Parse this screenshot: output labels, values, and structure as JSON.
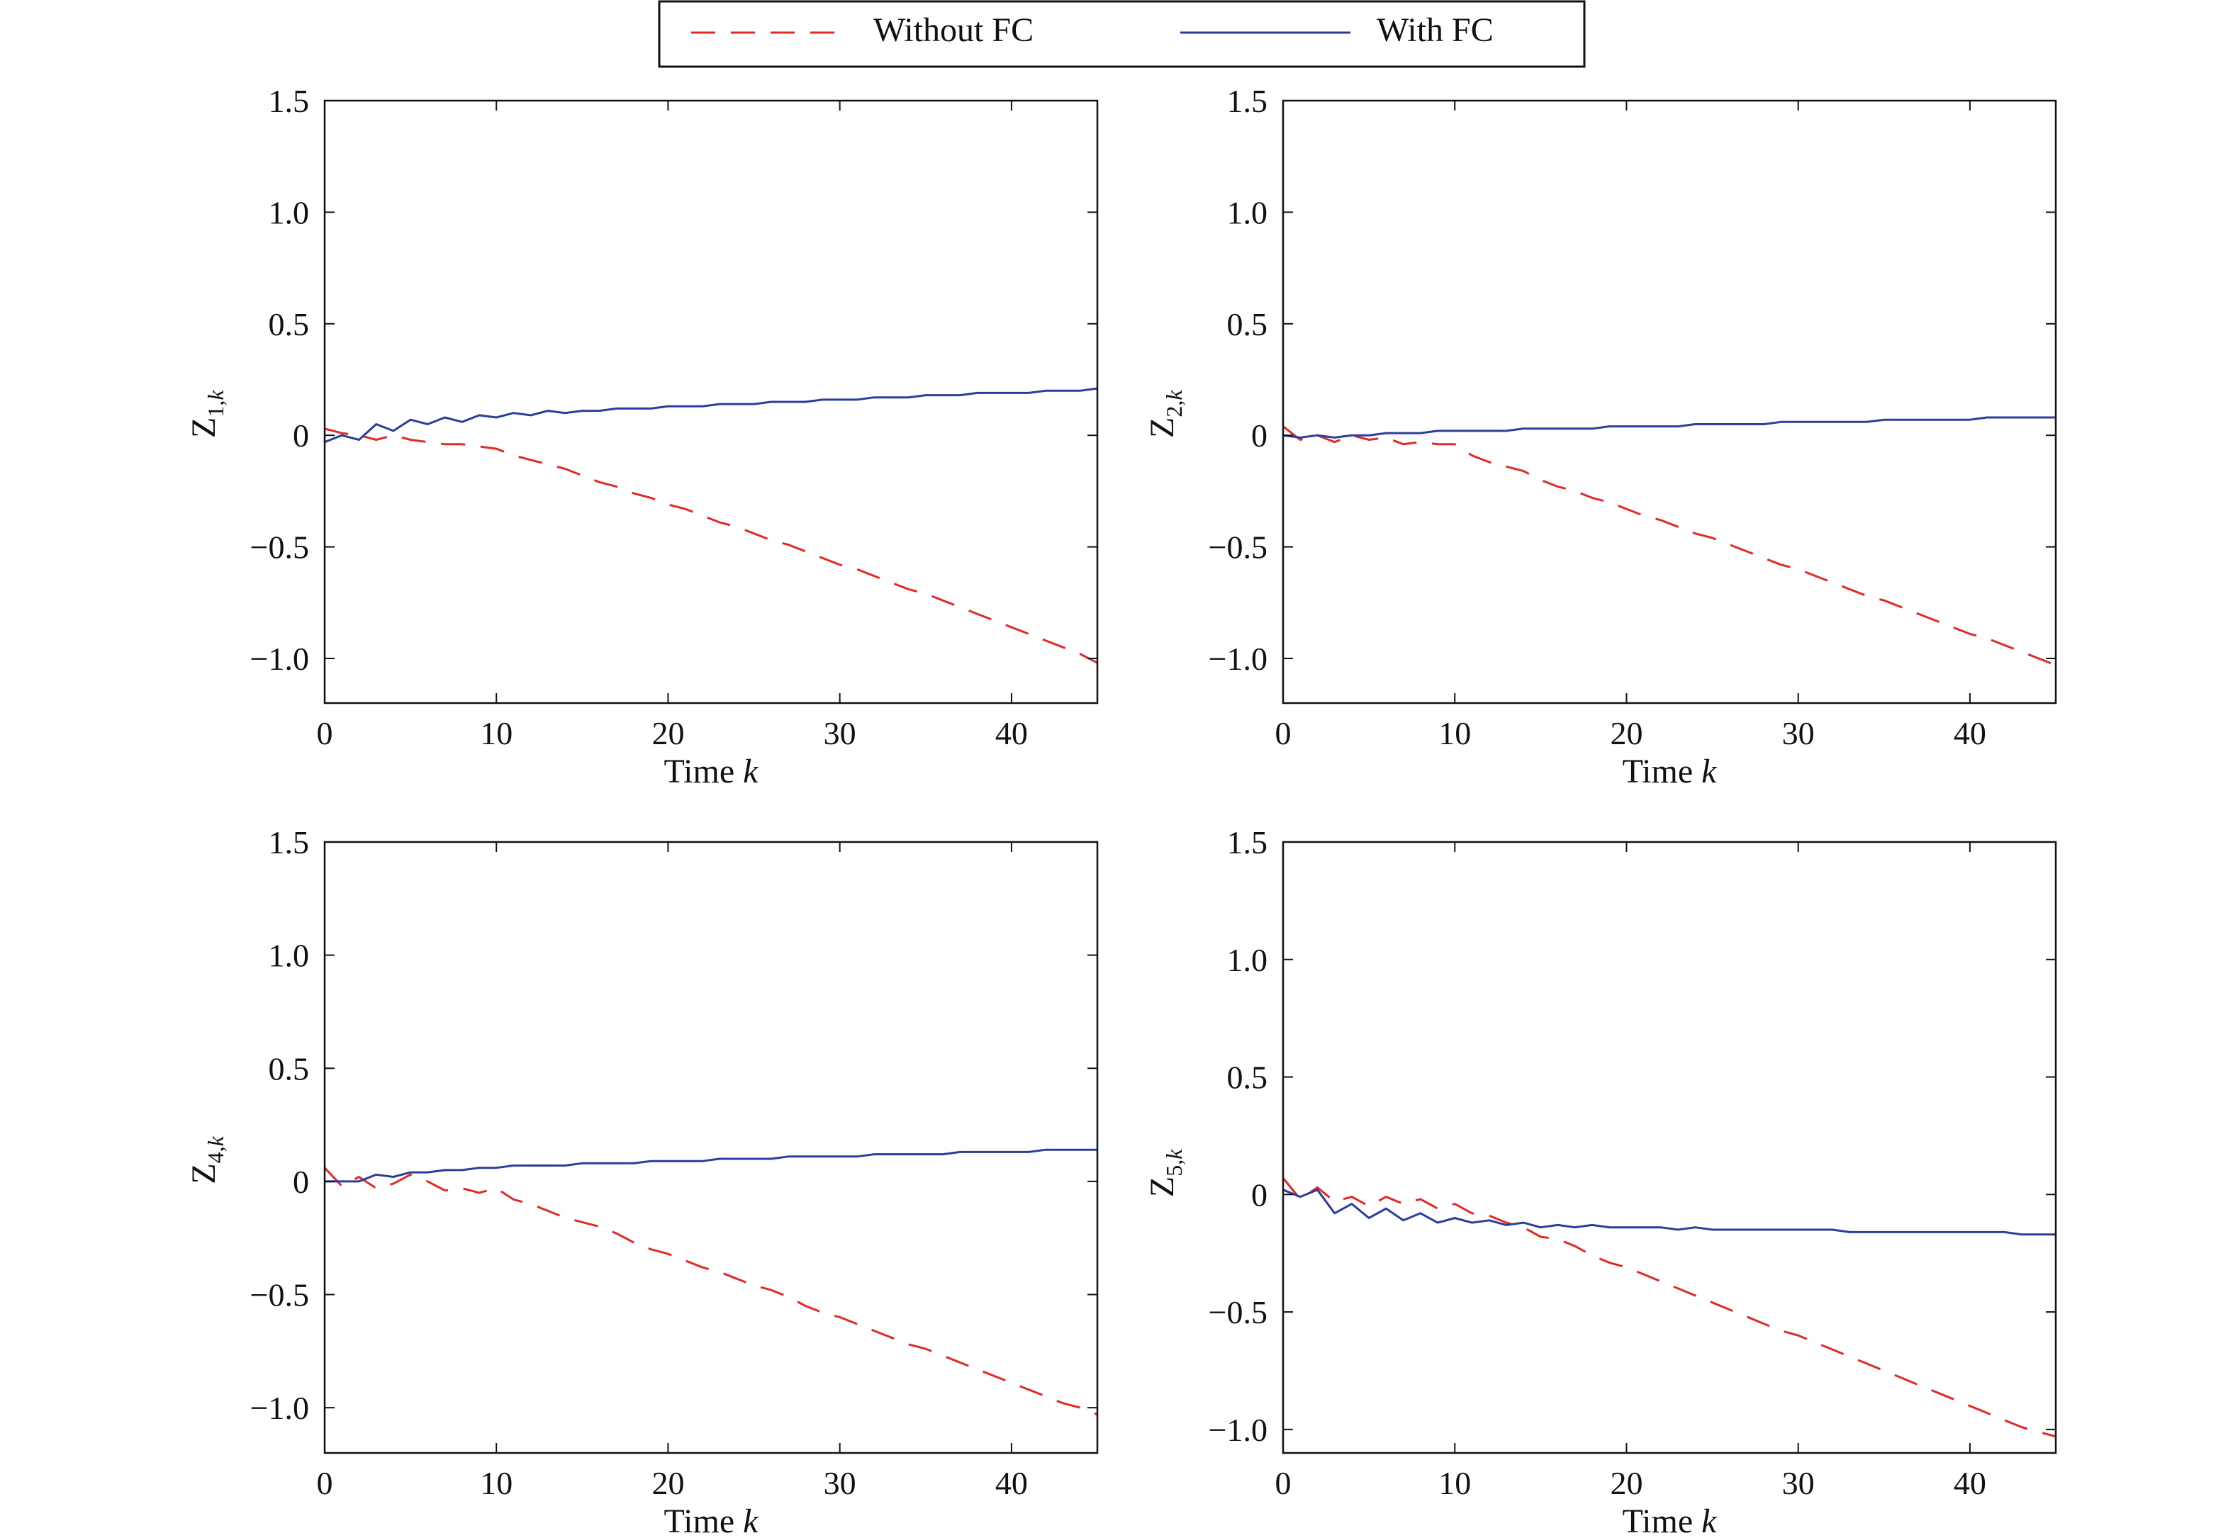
{
  "legend": {
    "entries": [
      {
        "label": "Without FC",
        "color": "#e02a2a",
        "dash": "dashed"
      },
      {
        "label": "With FC",
        "color": "#2b3e9a",
        "dash": "solid"
      }
    ]
  },
  "chart_data": [
    {
      "type": "line",
      "xlabel": "Time k",
      "ylabel": "Z1,k",
      "ylabel_main": "Z",
      "ylabel_sub": "1,k",
      "xlim": [
        0,
        45
      ],
      "ylim": [
        -1.2,
        1.5
      ],
      "xticks": [
        0,
        10,
        20,
        30,
        40
      ],
      "xtick_labels": [
        "0",
        "10",
        "20",
        "30",
        "40"
      ],
      "yticks": [
        1.5,
        1.0,
        0.5,
        0,
        -0.5,
        -1.0
      ],
      "ytick_labels": [
        "1.5",
        "1.0",
        "0.5",
        "0",
        "−0.5",
        "−1.0"
      ],
      "grid": false,
      "series": [
        {
          "name": "Without FC",
          "x": [
            0,
            1,
            2,
            3,
            4,
            5,
            6,
            7,
            8,
            9,
            10,
            11,
            12,
            13,
            14,
            15,
            16,
            17,
            18,
            19,
            20,
            21,
            22,
            23,
            24,
            25,
            26,
            27,
            28,
            29,
            30,
            31,
            32,
            33,
            34,
            35,
            36,
            37,
            38,
            39,
            40,
            41,
            42,
            43,
            44,
            45
          ],
          "y": [
            0.03,
            0.01,
            0.0,
            -0.02,
            0.0,
            -0.02,
            -0.03,
            -0.04,
            -0.04,
            -0.05,
            -0.06,
            -0.09,
            -0.11,
            -0.13,
            -0.15,
            -0.18,
            -0.21,
            -0.23,
            -0.26,
            -0.28,
            -0.31,
            -0.33,
            -0.36,
            -0.39,
            -0.41,
            -0.44,
            -0.47,
            -0.49,
            -0.52,
            -0.55,
            -0.58,
            -0.6,
            -0.63,
            -0.66,
            -0.69,
            -0.71,
            -0.74,
            -0.77,
            -0.8,
            -0.83,
            -0.86,
            -0.89,
            -0.92,
            -0.95,
            -0.98,
            -1.02
          ]
        },
        {
          "name": "With FC",
          "x": [
            0,
            1,
            2,
            3,
            4,
            5,
            6,
            7,
            8,
            9,
            10,
            11,
            12,
            13,
            14,
            15,
            16,
            17,
            18,
            19,
            20,
            21,
            22,
            23,
            24,
            25,
            26,
            27,
            28,
            29,
            30,
            31,
            32,
            33,
            34,
            35,
            36,
            37,
            38,
            39,
            40,
            41,
            42,
            43,
            44,
            45
          ],
          "y": [
            -0.03,
            0.0,
            -0.02,
            0.05,
            0.02,
            0.07,
            0.05,
            0.08,
            0.06,
            0.09,
            0.08,
            0.1,
            0.09,
            0.11,
            0.1,
            0.11,
            0.11,
            0.12,
            0.12,
            0.12,
            0.13,
            0.13,
            0.13,
            0.14,
            0.14,
            0.14,
            0.15,
            0.15,
            0.15,
            0.16,
            0.16,
            0.16,
            0.17,
            0.17,
            0.17,
            0.18,
            0.18,
            0.18,
            0.19,
            0.19,
            0.19,
            0.19,
            0.2,
            0.2,
            0.2,
            0.21
          ]
        }
      ]
    },
    {
      "type": "line",
      "xlabel": "Time k",
      "ylabel": "Z2,k",
      "ylabel_main": "Z",
      "ylabel_sub": "2,k",
      "xlim": [
        0,
        45
      ],
      "ylim": [
        -1.2,
        1.5
      ],
      "xticks": [
        0,
        10,
        20,
        30,
        40
      ],
      "xtick_labels": [
        "0",
        "10",
        "20",
        "30",
        "40"
      ],
      "yticks": [
        1.5,
        1.0,
        0.5,
        0,
        -0.5,
        -1.0
      ],
      "ytick_labels": [
        "1.5",
        "1.0",
        "0.5",
        "0",
        "−0.5",
        "−1.0"
      ],
      "grid": false,
      "series": [
        {
          "name": "Without FC",
          "x": [
            0,
            1,
            2,
            3,
            4,
            5,
            6,
            7,
            8,
            9,
            10,
            11,
            12,
            13,
            14,
            15,
            16,
            17,
            18,
            19,
            20,
            21,
            22,
            23,
            24,
            25,
            26,
            27,
            28,
            29,
            30,
            31,
            32,
            33,
            34,
            35,
            36,
            37,
            38,
            39,
            40,
            41,
            42,
            43,
            44,
            45
          ],
          "y": [
            0.04,
            -0.02,
            0.0,
            -0.03,
            0.0,
            -0.02,
            -0.01,
            -0.04,
            -0.03,
            -0.04,
            -0.04,
            -0.09,
            -0.12,
            -0.14,
            -0.16,
            -0.2,
            -0.23,
            -0.25,
            -0.28,
            -0.3,
            -0.33,
            -0.36,
            -0.38,
            -0.41,
            -0.44,
            -0.46,
            -0.49,
            -0.52,
            -0.55,
            -0.58,
            -0.6,
            -0.63,
            -0.66,
            -0.69,
            -0.72,
            -0.74,
            -0.77,
            -0.8,
            -0.83,
            -0.86,
            -0.89,
            -0.91,
            -0.94,
            -0.97,
            -1.0,
            -1.03
          ]
        },
        {
          "name": "With FC",
          "x": [
            0,
            1,
            2,
            3,
            4,
            5,
            6,
            7,
            8,
            9,
            10,
            11,
            12,
            13,
            14,
            15,
            16,
            17,
            18,
            19,
            20,
            21,
            22,
            23,
            24,
            25,
            26,
            27,
            28,
            29,
            30,
            31,
            32,
            33,
            34,
            35,
            36,
            37,
            38,
            39,
            40,
            41,
            42,
            43,
            44,
            45
          ],
          "y": [
            0.0,
            -0.01,
            0.0,
            -0.01,
            0.0,
            0.0,
            0.01,
            0.01,
            0.01,
            0.02,
            0.02,
            0.02,
            0.02,
            0.02,
            0.03,
            0.03,
            0.03,
            0.03,
            0.03,
            0.04,
            0.04,
            0.04,
            0.04,
            0.04,
            0.05,
            0.05,
            0.05,
            0.05,
            0.05,
            0.06,
            0.06,
            0.06,
            0.06,
            0.06,
            0.06,
            0.07,
            0.07,
            0.07,
            0.07,
            0.07,
            0.07,
            0.08,
            0.08,
            0.08,
            0.08,
            0.08
          ]
        }
      ]
    },
    {
      "type": "line",
      "xlabel": "Time k",
      "ylabel": "Z4,k",
      "ylabel_main": "Z",
      "ylabel_sub": "4,k",
      "xlim": [
        0,
        45
      ],
      "ylim": [
        -1.2,
        1.5
      ],
      "xticks": [
        0,
        10,
        20,
        30,
        40
      ],
      "xtick_labels": [
        "0",
        "10",
        "20",
        "30",
        "40"
      ],
      "yticks": [
        1.5,
        1.0,
        0.5,
        0,
        -0.5,
        -1.0
      ],
      "ytick_labels": [
        "1.5",
        "1.0",
        "0.5",
        "0",
        "−0.5",
        "−1.0"
      ],
      "grid": false,
      "series": [
        {
          "name": "Without FC",
          "x": [
            0,
            1,
            2,
            3,
            4,
            5,
            6,
            7,
            8,
            9,
            10,
            11,
            12,
            13,
            14,
            15,
            16,
            17,
            18,
            19,
            20,
            21,
            22,
            23,
            24,
            25,
            26,
            27,
            28,
            29,
            30,
            31,
            32,
            33,
            34,
            35,
            36,
            37,
            38,
            39,
            40,
            41,
            42,
            43,
            44,
            45
          ],
          "y": [
            0.06,
            -0.02,
            0.02,
            -0.03,
            -0.01,
            0.03,
            0.0,
            -0.04,
            -0.03,
            -0.05,
            -0.03,
            -0.08,
            -0.1,
            -0.13,
            -0.16,
            -0.18,
            -0.2,
            -0.23,
            -0.27,
            -0.3,
            -0.32,
            -0.35,
            -0.38,
            -0.4,
            -0.43,
            -0.46,
            -0.48,
            -0.51,
            -0.55,
            -0.58,
            -0.6,
            -0.63,
            -0.66,
            -0.69,
            -0.72,
            -0.74,
            -0.77,
            -0.8,
            -0.83,
            -0.86,
            -0.89,
            -0.92,
            -0.95,
            -0.98,
            -1.0,
            -1.03
          ]
        },
        {
          "name": "With FC",
          "x": [
            0,
            1,
            2,
            3,
            4,
            5,
            6,
            7,
            8,
            9,
            10,
            11,
            12,
            13,
            14,
            15,
            16,
            17,
            18,
            19,
            20,
            21,
            22,
            23,
            24,
            25,
            26,
            27,
            28,
            29,
            30,
            31,
            32,
            33,
            34,
            35,
            36,
            37,
            38,
            39,
            40,
            41,
            42,
            43,
            44,
            45
          ],
          "y": [
            0.0,
            0.0,
            0.0,
            0.03,
            0.02,
            0.04,
            0.04,
            0.05,
            0.05,
            0.06,
            0.06,
            0.07,
            0.07,
            0.07,
            0.07,
            0.08,
            0.08,
            0.08,
            0.08,
            0.09,
            0.09,
            0.09,
            0.09,
            0.1,
            0.1,
            0.1,
            0.1,
            0.11,
            0.11,
            0.11,
            0.11,
            0.11,
            0.12,
            0.12,
            0.12,
            0.12,
            0.12,
            0.13,
            0.13,
            0.13,
            0.13,
            0.13,
            0.14,
            0.14,
            0.14,
            0.14
          ]
        }
      ]
    },
    {
      "type": "line",
      "xlabel": "Time k",
      "ylabel": "Z5,k",
      "ylabel_main": "Z",
      "ylabel_sub": "5,k",
      "xlim": [
        0,
        45
      ],
      "ylim": [
        -1.1,
        1.5
      ],
      "xticks": [
        0,
        10,
        20,
        30,
        40
      ],
      "xtick_labels": [
        "0",
        "10",
        "20",
        "30",
        "40"
      ],
      "yticks": [
        1.5,
        1.0,
        0.5,
        0,
        -0.5,
        -1.0
      ],
      "ytick_labels": [
        "1.5",
        "1.0",
        "0.5",
        "0",
        "−0.5",
        "−1.0"
      ],
      "grid": false,
      "series": [
        {
          "name": "Without FC",
          "x": [
            0,
            1,
            2,
            3,
            4,
            5,
            6,
            7,
            8,
            9,
            10,
            11,
            12,
            13,
            14,
            15,
            16,
            17,
            18,
            19,
            20,
            21,
            22,
            23,
            24,
            25,
            26,
            27,
            28,
            29,
            30,
            31,
            32,
            33,
            34,
            35,
            36,
            37,
            38,
            39,
            40,
            41,
            42,
            43,
            44,
            45
          ],
          "y": [
            0.07,
            -0.02,
            0.03,
            -0.03,
            -0.01,
            -0.05,
            -0.01,
            -0.04,
            -0.02,
            -0.06,
            -0.04,
            -0.08,
            -0.09,
            -0.12,
            -0.14,
            -0.18,
            -0.19,
            -0.22,
            -0.26,
            -0.29,
            -0.31,
            -0.34,
            -0.37,
            -0.4,
            -0.43,
            -0.46,
            -0.49,
            -0.52,
            -0.55,
            -0.58,
            -0.6,
            -0.63,
            -0.66,
            -0.69,
            -0.72,
            -0.75,
            -0.78,
            -0.81,
            -0.84,
            -0.87,
            -0.9,
            -0.93,
            -0.96,
            -0.99,
            -1.01,
            -1.03
          ]
        },
        {
          "name": "With FC",
          "x": [
            0,
            1,
            2,
            3,
            4,
            5,
            6,
            7,
            8,
            9,
            10,
            11,
            12,
            13,
            14,
            15,
            16,
            17,
            18,
            19,
            20,
            21,
            22,
            23,
            24,
            25,
            26,
            27,
            28,
            29,
            30,
            31,
            32,
            33,
            34,
            35,
            36,
            37,
            38,
            39,
            40,
            41,
            42,
            43,
            44,
            45
          ],
          "y": [
            0.02,
            -0.01,
            0.02,
            -0.08,
            -0.04,
            -0.1,
            -0.06,
            -0.11,
            -0.08,
            -0.12,
            -0.1,
            -0.12,
            -0.11,
            -0.13,
            -0.12,
            -0.14,
            -0.13,
            -0.14,
            -0.13,
            -0.14,
            -0.14,
            -0.14,
            -0.14,
            -0.15,
            -0.14,
            -0.15,
            -0.15,
            -0.15,
            -0.15,
            -0.15,
            -0.15,
            -0.15,
            -0.15,
            -0.16,
            -0.16,
            -0.16,
            -0.16,
            -0.16,
            -0.16,
            -0.16,
            -0.16,
            -0.16,
            -0.16,
            -0.17,
            -0.17,
            -0.17
          ]
        }
      ]
    }
  ]
}
